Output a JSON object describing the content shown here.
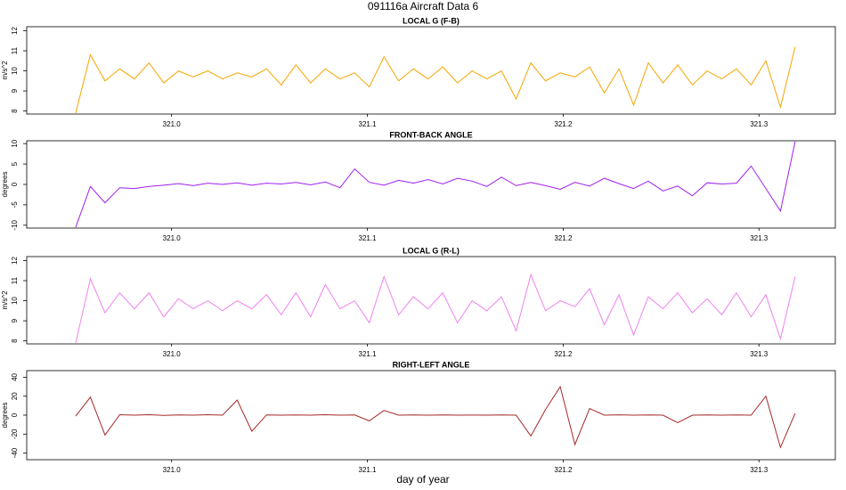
{
  "title": "091116a   Aircraft Data 6",
  "xlabel": "day of year",
  "chart_data": [
    {
      "type": "line",
      "title": "LOCAL G (F-B)",
      "ylabel": "m/s^2",
      "x": [
        320.951,
        320.9585,
        320.966,
        320.9735,
        320.981,
        320.9885,
        320.996,
        321.0035,
        321.011,
        321.0185,
        321.026,
        321.0335,
        321.041,
        321.0485,
        321.056,
        321.0635,
        321.071,
        321.0785,
        321.086,
        321.0935,
        321.101,
        321.1085,
        321.116,
        321.1235,
        321.131,
        321.1385,
        321.146,
        321.1535,
        321.161,
        321.1685,
        321.176,
        321.1835,
        321.191,
        321.1985,
        321.206,
        321.2135,
        321.221,
        321.2285,
        321.236,
        321.2435,
        321.251,
        321.2585,
        321.266,
        321.2735,
        321.281,
        321.2885,
        321.296,
        321.3035,
        321.311,
        321.3185
      ],
      "xlim": [
        320.926,
        321.339
      ],
      "xticks": [
        {
          "value": 321,
          "label": "321.0"
        },
        321.1,
        321.2,
        321.3
      ],
      "ylim": [
        7.85,
        12.2
      ],
      "yticks": [
        8,
        9,
        10,
        11,
        12
      ],
      "series": [
        {
          "color": "#f5a500",
          "values": [
            7.9,
            10.8,
            9.5,
            10.1,
            9.6,
            10.4,
            9.4,
            10.0,
            9.7,
            10.0,
            9.6,
            9.9,
            9.7,
            10.1,
            9.3,
            10.3,
            9.4,
            10.1,
            9.6,
            9.9,
            9.2,
            10.7,
            9.5,
            10.1,
            9.6,
            10.2,
            9.4,
            10.0,
            9.6,
            10.0,
            8.6,
            10.4,
            9.5,
            9.9,
            9.7,
            10.2,
            8.9,
            10.1,
            8.3,
            10.4,
            9.4,
            10.3,
            9.3,
            10.0,
            9.6,
            10.1,
            9.3,
            10.5,
            8.2,
            11.2
          ]
        }
      ]
    },
    {
      "type": "line",
      "title": "FRONT-BACK ANGLE",
      "ylabel": "degrees",
      "x": [
        320.951,
        320.9585,
        320.966,
        320.9735,
        320.981,
        320.9885,
        320.996,
        321.0035,
        321.011,
        321.0185,
        321.026,
        321.0335,
        321.041,
        321.0485,
        321.056,
        321.0635,
        321.071,
        321.0785,
        321.086,
        321.0935,
        321.101,
        321.1085,
        321.116,
        321.1235,
        321.131,
        321.1385,
        321.146,
        321.1535,
        321.161,
        321.1685,
        321.176,
        321.1835,
        321.191,
        321.1985,
        321.206,
        321.2135,
        321.221,
        321.2285,
        321.236,
        321.2435,
        321.251,
        321.2585,
        321.266,
        321.2735,
        321.281,
        321.2885,
        321.296,
        321.3035,
        321.311,
        321.3185
      ],
      "xlim": [
        320.926,
        321.339
      ],
      "xticks": [
        {
          "value": 321,
          "label": "321.0"
        },
        321.1,
        321.2,
        321.3
      ],
      "ylim": [
        -10.7,
        10.7
      ],
      "yticks": [
        -10,
        -5,
        0,
        5,
        10
      ],
      "series": [
        {
          "color": "#a020f0",
          "values": [
            -10.5,
            -0.5,
            -4.5,
            -0.8,
            -1.0,
            -0.5,
            -0.2,
            0.2,
            -0.3,
            0.3,
            0.0,
            0.4,
            -0.2,
            0.3,
            0.1,
            0.5,
            -0.1,
            0.6,
            -0.8,
            3.8,
            0.5,
            -0.2,
            1.0,
            0.3,
            1.2,
            0.1,
            1.5,
            0.8,
            -0.5,
            1.8,
            -0.3,
            0.5,
            -0.3,
            -1.2,
            0.5,
            -0.4,
            1.5,
            0.2,
            -1.0,
            0.8,
            -1.6,
            -0.4,
            -2.8,
            0.4,
            0.1,
            0.3,
            4.5,
            -1.0,
            -6.5,
            10.5
          ]
        }
      ]
    },
    {
      "type": "line",
      "title": "LOCAL G (R-L)",
      "ylabel": "m/s^2",
      "x": [
        320.951,
        320.9585,
        320.966,
        320.9735,
        320.981,
        320.9885,
        320.996,
        321.0035,
        321.011,
        321.0185,
        321.026,
        321.0335,
        321.041,
        321.0485,
        321.056,
        321.0635,
        321.071,
        321.0785,
        321.086,
        321.0935,
        321.101,
        321.1085,
        321.116,
        321.1235,
        321.131,
        321.1385,
        321.146,
        321.1535,
        321.161,
        321.1685,
        321.176,
        321.1835,
        321.191,
        321.1985,
        321.206,
        321.2135,
        321.221,
        321.2285,
        321.236,
        321.2435,
        321.251,
        321.2585,
        321.266,
        321.2735,
        321.281,
        321.2885,
        321.296,
        321.3035,
        321.311,
        321.3185
      ],
      "xlim": [
        320.926,
        321.339
      ],
      "xticks": [
        {
          "value": 321,
          "label": "321.0"
        },
        321.1,
        321.2,
        321.3
      ],
      "ylim": [
        7.85,
        12.2
      ],
      "yticks": [
        8,
        9,
        10,
        11,
        12
      ],
      "series": [
        {
          "color": "#ee82ee",
          "values": [
            7.9,
            11.1,
            9.4,
            10.4,
            9.6,
            10.4,
            9.2,
            10.1,
            9.6,
            10.0,
            9.5,
            10.0,
            9.6,
            10.3,
            9.3,
            10.4,
            9.2,
            10.8,
            9.6,
            10.0,
            8.9,
            11.2,
            9.3,
            10.2,
            9.6,
            10.4,
            8.9,
            10.0,
            9.5,
            10.2,
            8.5,
            11.3,
            9.5,
            10.0,
            9.7,
            10.6,
            8.8,
            10.3,
            8.3,
            10.2,
            9.6,
            10.4,
            9.4,
            10.1,
            9.3,
            10.4,
            9.2,
            10.3,
            8.1,
            11.2
          ]
        }
      ]
    },
    {
      "type": "line",
      "title": "RIGHT-LEFT ANGLE",
      "ylabel": "degrees",
      "x": [
        320.951,
        320.9585,
        320.966,
        320.9735,
        320.981,
        320.9885,
        320.996,
        321.0035,
        321.011,
        321.0185,
        321.026,
        321.0335,
        321.041,
        321.0485,
        321.056,
        321.0635,
        321.071,
        321.0785,
        321.086,
        321.0935,
        321.101,
        321.1085,
        321.116,
        321.1235,
        321.131,
        321.1385,
        321.146,
        321.1535,
        321.161,
        321.1685,
        321.176,
        321.1835,
        321.191,
        321.1985,
        321.206,
        321.2135,
        321.221,
        321.2285,
        321.236,
        321.2435,
        321.251,
        321.2585,
        321.266,
        321.2735,
        321.281,
        321.2885,
        321.296,
        321.3035,
        321.311,
        321.3185
      ],
      "xlim": [
        320.926,
        321.339
      ],
      "xticks": [
        {
          "value": 321,
          "label": "321.0"
        },
        321.1,
        321.2,
        321.3
      ],
      "ylim": [
        -47,
        47
      ],
      "yticks": [
        -40,
        -20,
        0,
        20,
        40
      ],
      "series": [
        {
          "color": "#a52a2a",
          "values": [
            -1,
            19,
            -21,
            0.5,
            0,
            0.5,
            -0.3,
            0.2,
            0,
            0.5,
            0,
            16,
            -17,
            0.3,
            0,
            0.3,
            0,
            0.5,
            0,
            0.2,
            -6,
            5,
            0,
            0.2,
            0,
            0.3,
            0,
            0.1,
            0,
            0.2,
            0,
            -22,
            6,
            30,
            -31,
            7,
            0,
            0.4,
            0,
            0.2,
            0,
            -8,
            0,
            0.3,
            0,
            0.2,
            0,
            20,
            -34,
            2
          ]
        }
      ]
    }
  ]
}
